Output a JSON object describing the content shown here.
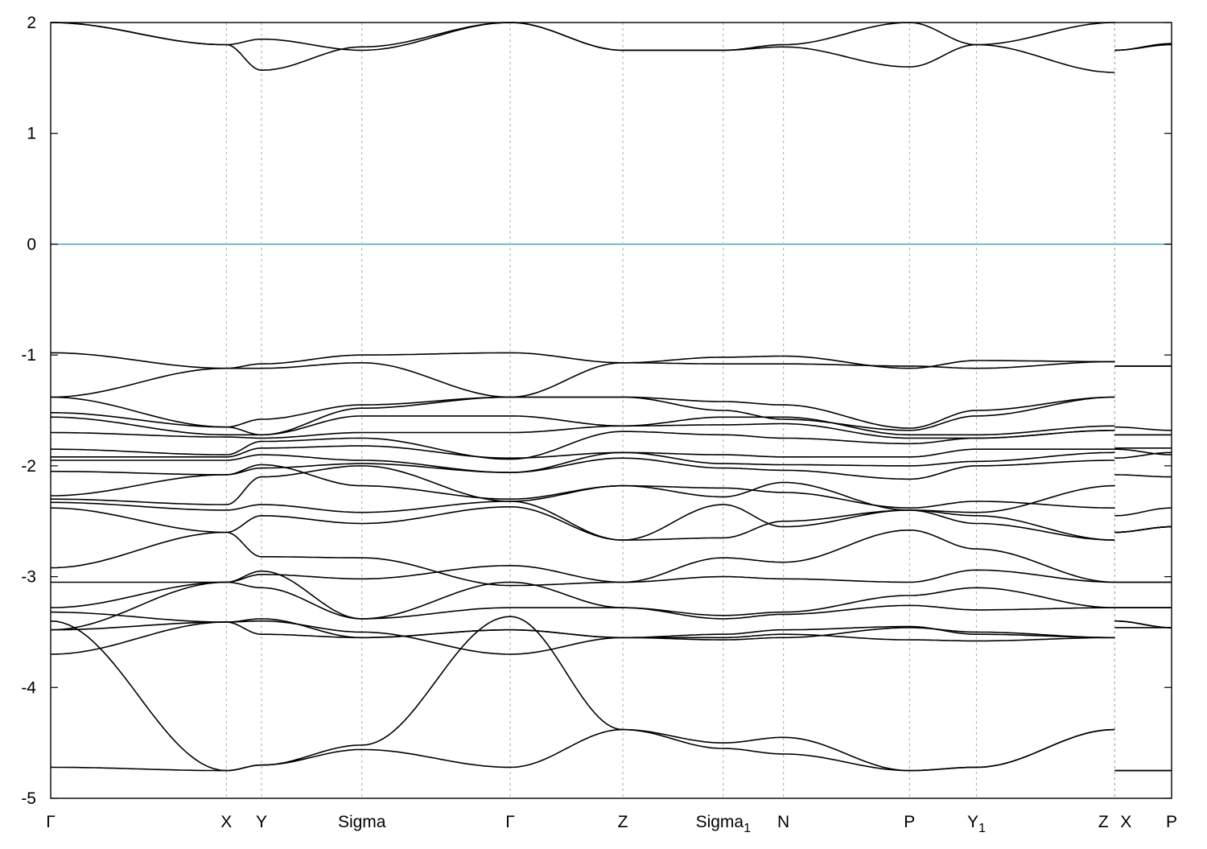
{
  "chart_data": {
    "type": "line",
    "title": "",
    "xlabel": "",
    "ylabel": "",
    "ylim": [
      -5,
      2
    ],
    "yticks": [
      2,
      1,
      0,
      -1,
      -2,
      -3,
      -4,
      -5
    ],
    "fermi_level": {
      "value": 0,
      "color": "#4aa8c0"
    },
    "high_symmetry_points": [
      {
        "label": "Γ",
        "sub": "",
        "x": 0.0
      },
      {
        "label": "X",
        "sub": "",
        "x": 1.575
      },
      {
        "label": "Y",
        "sub": "",
        "x": 1.89
      },
      {
        "label": "Sigma",
        "sub": "",
        "x": 2.79
      },
      {
        "label": "Γ",
        "sub": "",
        "x": 4.12
      },
      {
        "label": "Z",
        "sub": "",
        "x": 5.13
      },
      {
        "label": "Sigma",
        "sub": "1",
        "x": 6.03
      },
      {
        "label": "N",
        "sub": "",
        "x": 6.57
      },
      {
        "label": "P",
        "sub": "",
        "x": 7.7
      },
      {
        "label": "Y",
        "sub": "1",
        "x": 8.3
      },
      {
        "label": "Z",
        "sub": "",
        "x": 9.54
      },
      {
        "label": "X",
        "sub": "",
        "x": 9.54
      },
      {
        "label": "P",
        "sub": "",
        "x": 10.05
      }
    ],
    "xlim": [
      0,
      10.05
    ],
    "segments": [
      {
        "from": "Γ",
        "to": "X",
        "x0": 0.0,
        "x1": 1.575
      },
      {
        "from": "X",
        "to": "Y",
        "x0": 1.575,
        "x1": 1.89
      },
      {
        "from": "Y",
        "to": "Sigma",
        "x0": 1.89,
        "x1": 2.79
      },
      {
        "from": "Sigma",
        "to": "Γ",
        "x0": 2.79,
        "x1": 4.12
      },
      {
        "from": "Γ",
        "to": "Z",
        "x0": 4.12,
        "x1": 5.13
      },
      {
        "from": "Z",
        "to": "Sigma1",
        "x0": 5.13,
        "x1": 6.03
      },
      {
        "from": "Sigma1",
        "to": "N",
        "x0": 6.03,
        "x1": 6.57
      },
      {
        "from": "N",
        "to": "P",
        "x0": 6.57,
        "x1": 7.7
      },
      {
        "from": "P",
        "to": "Y1",
        "x0": 7.7,
        "x1": 8.3
      },
      {
        "from": "Y1",
        "to": "Z",
        "x0": 8.3,
        "x1": 9.54
      },
      {
        "from": "X",
        "to": "P",
        "x0": 9.54,
        "x1": 10.05
      }
    ],
    "series": [
      {
        "values": [
          2.0,
          1.8,
          1.85,
          1.75,
          2.0,
          1.75,
          1.75,
          1.8,
          2.0,
          1.8,
          2.0,
          1.75,
          1.81
        ]
      },
      {
        "values": [
          2.0,
          1.8,
          1.57,
          1.78,
          2.0,
          1.75,
          1.75,
          1.78,
          1.6,
          1.8,
          1.55,
          1.75,
          1.8
        ]
      },
      {
        "values": [
          -0.98,
          -1.12,
          -1.12,
          -1.07,
          -1.38,
          -1.07,
          -1.08,
          -1.08,
          -1.1,
          -1.12,
          -1.06,
          -1.1,
          -1.1
        ]
      },
      {
        "values": [
          -1.38,
          -1.12,
          -1.08,
          -1.0,
          -0.98,
          -1.07,
          -1.02,
          -1.01,
          -1.12,
          -1.05,
          -1.06,
          -1.1,
          -1.1
        ]
      },
      {
        "values": [
          -1.38,
          -1.65,
          -1.72,
          -1.48,
          -1.38,
          -1.38,
          -1.42,
          -1.45,
          -1.66,
          -1.5,
          -1.38,
          -1.65,
          -1.68
        ]
      },
      {
        "values": [
          -1.52,
          -1.65,
          -1.58,
          -1.45,
          -1.38,
          -1.38,
          -1.5,
          -1.58,
          -1.68,
          -1.55,
          -1.38,
          -1.72,
          -1.72
        ]
      },
      {
        "values": [
          -1.56,
          -1.72,
          -1.72,
          -1.55,
          -1.55,
          -1.64,
          -1.56,
          -1.56,
          -1.72,
          -1.72,
          -1.64,
          -1.72,
          -1.72
        ]
      },
      {
        "values": [
          -1.7,
          -1.74,
          -1.75,
          -1.7,
          -1.7,
          -1.64,
          -1.63,
          -1.62,
          -1.75,
          -1.75,
          -1.68,
          -1.84,
          -1.84
        ]
      },
      {
        "values": [
          -1.85,
          -1.9,
          -1.78,
          -1.75,
          -1.94,
          -1.69,
          -1.72,
          -1.75,
          -1.8,
          -1.75,
          -1.68,
          -1.85,
          -1.9
        ]
      },
      {
        "values": [
          -1.92,
          -1.92,
          -1.84,
          -1.82,
          -1.93,
          -1.88,
          -1.9,
          -1.92,
          -1.92,
          -1.85,
          -1.85,
          -1.93,
          -1.88
        ]
      },
      {
        "values": [
          -1.95,
          -1.95,
          -1.9,
          -1.95,
          -2.06,
          -1.88,
          -1.98,
          -1.99,
          -2.0,
          -1.96,
          -1.88,
          -2.08,
          -2.1
        ]
      },
      {
        "values": [
          -2.05,
          -2.08,
          -2.02,
          -1.98,
          -2.06,
          -1.93,
          -2.02,
          -2.04,
          -2.12,
          -2.0,
          -1.95,
          -2.45,
          -2.38
        ]
      },
      {
        "values": [
          -2.27,
          -2.08,
          -1.99,
          -2.18,
          -2.3,
          -2.18,
          -2.28,
          -2.15,
          -2.4,
          -2.42,
          -2.18,
          -2.6,
          -2.55
        ]
      },
      {
        "values": [
          -2.3,
          -2.35,
          -2.1,
          -2.0,
          -2.32,
          -2.18,
          -2.2,
          -2.24,
          -2.38,
          -2.32,
          -2.38,
          -2.6,
          -2.55
        ]
      },
      {
        "values": [
          -2.33,
          -2.4,
          -2.35,
          -2.42,
          -2.32,
          -2.67,
          -2.35,
          -2.55,
          -2.4,
          -2.45,
          -2.67,
          -2.6,
          -2.55
        ]
      },
      {
        "values": [
          -2.38,
          -2.6,
          -2.45,
          -2.52,
          -2.37,
          -2.67,
          -2.65,
          -2.5,
          -2.4,
          -2.52,
          -2.67,
          -2.6,
          -2.55
        ]
      },
      {
        "values": [
          -2.92,
          -2.6,
          -2.82,
          -2.83,
          -3.08,
          -3.05,
          -2.83,
          -2.87,
          -2.58,
          -2.75,
          -3.05,
          -3.05,
          -3.05
        ]
      },
      {
        "values": [
          -3.05,
          -3.05,
          -2.98,
          -3.02,
          -2.9,
          -3.05,
          -3.0,
          -3.02,
          -3.05,
          -2.94,
          -3.05,
          -3.05,
          -3.05
        ]
      },
      {
        "values": [
          -3.28,
          -3.05,
          -3.1,
          -3.38,
          -3.05,
          -3.28,
          -3.35,
          -3.32,
          -3.17,
          -3.1,
          -3.28,
          -3.28,
          -3.28
        ]
      },
      {
        "values": [
          -3.48,
          -3.05,
          -2.95,
          -3.38,
          -3.28,
          -3.28,
          -3.38,
          -3.34,
          -3.26,
          -3.3,
          -3.28,
          -3.28,
          -3.28
        ]
      },
      {
        "values": [
          -3.32,
          -3.41,
          -3.52,
          -3.55,
          -3.48,
          -3.55,
          -3.52,
          -3.48,
          -3.45,
          -3.52,
          -3.55,
          -3.4,
          -3.46
        ]
      },
      {
        "values": [
          -3.48,
          -3.41,
          -3.38,
          -3.55,
          -3.48,
          -3.55,
          -3.55,
          -3.52,
          -3.57,
          -3.58,
          -3.55,
          -3.4,
          -3.46
        ]
      },
      {
        "values": [
          -3.7,
          -3.41,
          -3.4,
          -3.5,
          -3.7,
          -3.55,
          -3.57,
          -3.55,
          -3.46,
          -3.5,
          -3.55,
          -3.46,
          -3.46
        ]
      },
      {
        "values": [
          -3.4,
          -4.75,
          -4.7,
          -4.52,
          -3.36,
          -4.38,
          -4.5,
          -4.45,
          -4.75,
          -4.72,
          -4.38,
          -4.75,
          -4.75
        ]
      },
      {
        "values": [
          -4.72,
          -4.75,
          -4.7,
          -4.56,
          -4.72,
          -4.38,
          -4.55,
          -4.6,
          -4.75,
          -4.72,
          -4.38,
          -4.75,
          -4.75
        ]
      }
    ]
  }
}
